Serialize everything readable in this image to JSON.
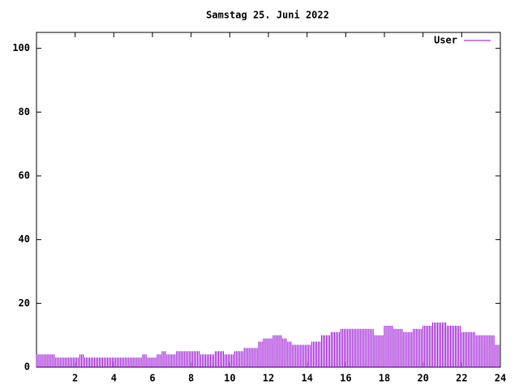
{
  "chart_data": {
    "type": "impulse",
    "title": "Samstag 25. Juni 2022",
    "x": [
      0,
      0.25,
      0.5,
      0.75,
      1,
      1.25,
      1.5,
      1.75,
      2,
      2.25,
      2.5,
      2.75,
      3,
      3.25,
      3.5,
      3.75,
      4,
      4.25,
      4.5,
      4.75,
      5,
      5.25,
      5.5,
      5.75,
      6,
      6.25,
      6.5,
      6.75,
      7,
      7.25,
      7.5,
      7.75,
      8,
      8.25,
      8.5,
      8.75,
      9,
      9.25,
      9.5,
      9.75,
      10,
      10.25,
      10.5,
      10.75,
      11,
      11.25,
      11.5,
      11.75,
      12,
      12.25,
      12.5,
      12.75,
      13,
      13.25,
      13.5,
      13.75,
      14,
      14.25,
      14.5,
      14.75,
      15,
      15.25,
      15.5,
      15.75,
      16,
      16.25,
      16.5,
      16.75,
      17,
      17.25,
      17.5,
      17.75,
      18,
      18.25,
      18.5,
      18.75,
      19,
      19.25,
      19.5,
      19.75,
      20,
      20.25,
      20.5,
      20.75,
      21,
      21.25,
      21.5,
      21.75,
      22,
      22.25,
      22.5,
      22.75,
      23,
      23.25,
      23.5,
      23.75
    ],
    "series": [
      {
        "name": "User",
        "color": "#9400d3",
        "values": [
          4,
          4,
          4,
          4,
          3,
          3,
          3,
          3,
          3,
          4,
          3,
          3,
          3,
          3,
          3,
          3,
          3,
          3,
          3,
          3,
          3,
          3,
          4,
          3,
          3,
          4,
          5,
          4,
          4,
          5,
          5,
          5,
          5,
          5,
          4,
          4,
          4,
          5,
          5,
          4,
          4,
          5,
          5,
          6,
          6,
          6,
          8,
          9,
          9,
          10,
          10,
          9,
          8,
          7,
          7,
          7,
          7,
          8,
          8,
          10,
          10,
          11,
          11,
          12,
          12,
          12,
          12,
          12,
          12,
          12,
          10,
          10,
          13,
          13,
          12,
          12,
          11,
          11,
          12,
          12,
          13,
          13,
          14,
          14,
          14,
          13,
          13,
          13,
          11,
          11,
          11,
          10,
          10,
          10,
          10,
          7
        ]
      }
    ],
    "xlim": [
      0,
      24
    ],
    "xticks": [
      2,
      4,
      6,
      8,
      10,
      12,
      14,
      16,
      18,
      20,
      22,
      24
    ],
    "ylim": [
      0,
      105
    ],
    "yticks": [
      0,
      20,
      40,
      60,
      80,
      100
    ],
    "legend": "upper right"
  }
}
